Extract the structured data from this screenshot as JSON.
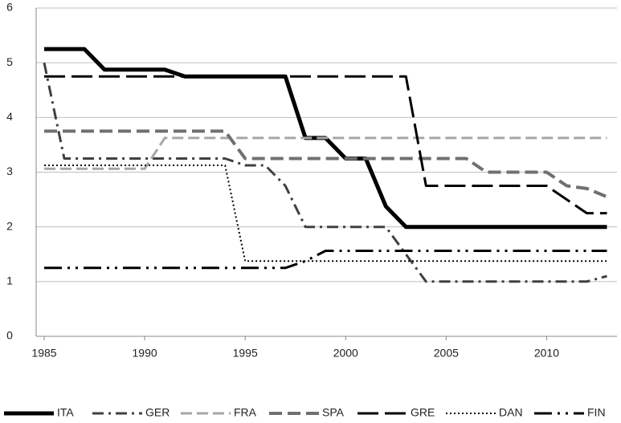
{
  "chart_data": {
    "type": "line",
    "x": [
      1985,
      1986,
      1987,
      1988,
      1989,
      1990,
      1991,
      1992,
      1993,
      1994,
      1995,
      1996,
      1997,
      1998,
      1999,
      2000,
      2001,
      2002,
      2003,
      2004,
      2005,
      2006,
      2007,
      2008,
      2009,
      2010,
      2011,
      2012,
      2013
    ],
    "series": [
      {
        "name": "ITA",
        "color": "#000000",
        "values": [
          5.25,
          5.25,
          5.25,
          4.875,
          4.875,
          4.875,
          4.875,
          4.75,
          4.75,
          4.75,
          4.75,
          4.75,
          4.75,
          3.625,
          3.625,
          3.25,
          3.25,
          2.375,
          2.0,
          2.0,
          2.0,
          2.0,
          2.0,
          2.0,
          2.0,
          2.0,
          2.0,
          2.0,
          2.0
        ]
      },
      {
        "name": "GER",
        "color": "#404040",
        "values": [
          5.0,
          3.25,
          3.25,
          3.25,
          3.25,
          3.25,
          3.25,
          3.25,
          3.25,
          3.25,
          3.125,
          3.125,
          2.75,
          2.0,
          2.0,
          2.0,
          2.0,
          2.0,
          1.5,
          1.0,
          1.0,
          1.0,
          1.0,
          1.0,
          1.0,
          1.0,
          1.0,
          1.0,
          1.1
        ]
      },
      {
        "name": "FRA",
        "color": "#a6a6a6",
        "values": [
          3.0625,
          3.0625,
          3.0625,
          3.0625,
          3.0625,
          3.0625,
          3.625,
          3.625,
          3.625,
          3.625,
          3.625,
          3.625,
          3.625,
          3.625,
          3.625,
          3.625,
          3.625,
          3.625,
          3.625,
          3.625,
          3.625,
          3.625,
          3.625,
          3.625,
          3.625,
          3.625,
          3.625,
          3.625,
          3.625
        ]
      },
      {
        "name": "SPA",
        "color": "#707070",
        "values": [
          3.75,
          3.75,
          3.75,
          3.75,
          3.75,
          3.75,
          3.75,
          3.75,
          3.75,
          3.75,
          3.25,
          3.25,
          3.25,
          3.25,
          3.25,
          3.25,
          3.25,
          3.25,
          3.25,
          3.25,
          3.25,
          3.25,
          3.0,
          3.0,
          3.0,
          3.0,
          2.75,
          2.7,
          2.55
        ]
      },
      {
        "name": "GRE",
        "color": "#000000",
        "values": [
          4.75,
          4.75,
          4.75,
          4.75,
          4.75,
          4.75,
          4.75,
          4.75,
          4.75,
          4.75,
          4.75,
          4.75,
          4.75,
          4.75,
          4.75,
          4.75,
          4.75,
          4.75,
          4.75,
          2.75,
          2.75,
          2.75,
          2.75,
          2.75,
          2.75,
          2.75,
          2.5,
          2.25,
          2.25
        ]
      },
      {
        "name": "DAN",
        "color": "#000000",
        "values": [
          3.125,
          3.125,
          3.125,
          3.125,
          3.125,
          3.125,
          3.125,
          3.125,
          3.125,
          3.125,
          1.375,
          1.375,
          1.375,
          1.375,
          1.375,
          1.375,
          1.375,
          1.375,
          1.375,
          1.375,
          1.375,
          1.375,
          1.375,
          1.375,
          1.375,
          1.375,
          1.375,
          1.375,
          1.375
        ]
      },
      {
        "name": "FIN",
        "color": "#000000",
        "values": [
          1.25,
          1.25,
          1.25,
          1.25,
          1.25,
          1.25,
          1.25,
          1.25,
          1.25,
          1.25,
          1.25,
          1.25,
          1.25,
          1.375,
          1.5625,
          1.5625,
          1.5625,
          1.5625,
          1.5625,
          1.5625,
          1.5625,
          1.5625,
          1.5625,
          1.5625,
          1.5625,
          1.5625,
          1.5625,
          1.5625,
          1.5625
        ]
      }
    ],
    "xlim": [
      1984.6,
      2013.5
    ],
    "xticks": [
      1985,
      1990,
      1995,
      2000,
      2005,
      2010
    ],
    "ylim": [
      0,
      6
    ],
    "yticks": [
      0,
      1,
      2,
      3,
      4,
      5,
      6
    ],
    "grid": true,
    "legend": "bottom"
  }
}
